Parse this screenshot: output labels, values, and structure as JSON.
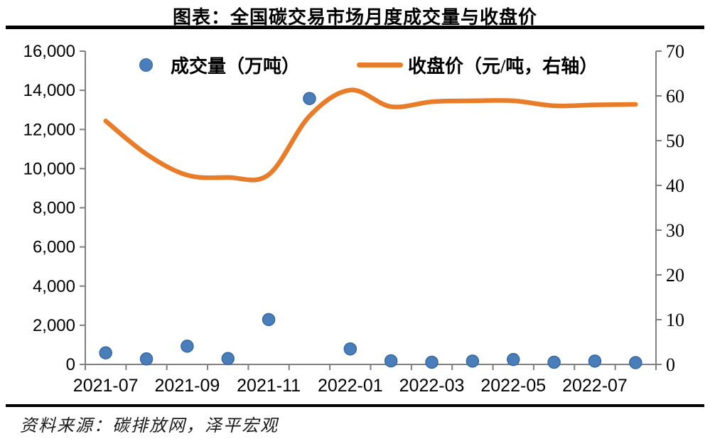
{
  "header": {
    "title": "图表：全国碳交易市场月度成交量与收盘价"
  },
  "source": "资料来源：碳排放网，泽平宏观",
  "colors": {
    "scatter_fill": "#4A7EBB",
    "scatter_border": "#38689E",
    "line": "#E87C28",
    "axis": "#7F7F7F",
    "rule": "#000000"
  },
  "chart_data": {
    "type": "combo",
    "subtypes": [
      "scatter",
      "line"
    ],
    "title": "全国碳交易市场月度成交量与收盘价",
    "categories": [
      "2021-07",
      "2021-08",
      "2021-09",
      "2021-10",
      "2021-11",
      "2021-12",
      "2022-01",
      "2022-02",
      "2022-03",
      "2022-04",
      "2022-05",
      "2022-06",
      "2022-07",
      "2022-08"
    ],
    "series": [
      {
        "name": "成交量（万吨）",
        "type": "scatter",
        "axis": "left",
        "color": "#4A7EBB",
        "values": [
          590,
          280,
          930,
          300,
          2290,
          13580,
          790,
          180,
          110,
          170,
          250,
          110,
          170,
          90
        ]
      },
      {
        "name": "收盘价（元/吨，右轴）",
        "type": "line",
        "axis": "right",
        "color": "#E87C28",
        "values": [
          54.4,
          47.0,
          42.3,
          41.8,
          42.4,
          55.5,
          61.3,
          57.6,
          58.7,
          58.9,
          58.9,
          57.8,
          58.0,
          58.1
        ]
      }
    ],
    "left_axis": {
      "label": "成交量（万吨）",
      "min": 0,
      "max": 16000,
      "step": 2000,
      "tick_labels": [
        "0",
        "2,000",
        "4,000",
        "6,000",
        "8,000",
        "10,000",
        "12,000",
        "14,000",
        "16,000"
      ]
    },
    "right_axis": {
      "label": "收盘价（元/吨）",
      "min": 0,
      "max": 70,
      "step": 10,
      "tick_labels": [
        "0",
        "10",
        "20",
        "30",
        "40",
        "50",
        "60",
        "70"
      ]
    },
    "x_axis": {
      "tick_labels": [
        "2021-07",
        "2021-09",
        "2021-11",
        "2022-01",
        "2022-03",
        "2022-05",
        "2022-07"
      ],
      "label_indices": [
        0,
        2,
        4,
        6,
        8,
        10,
        12
      ]
    },
    "grid": false,
    "legend_position": "top-inside"
  }
}
